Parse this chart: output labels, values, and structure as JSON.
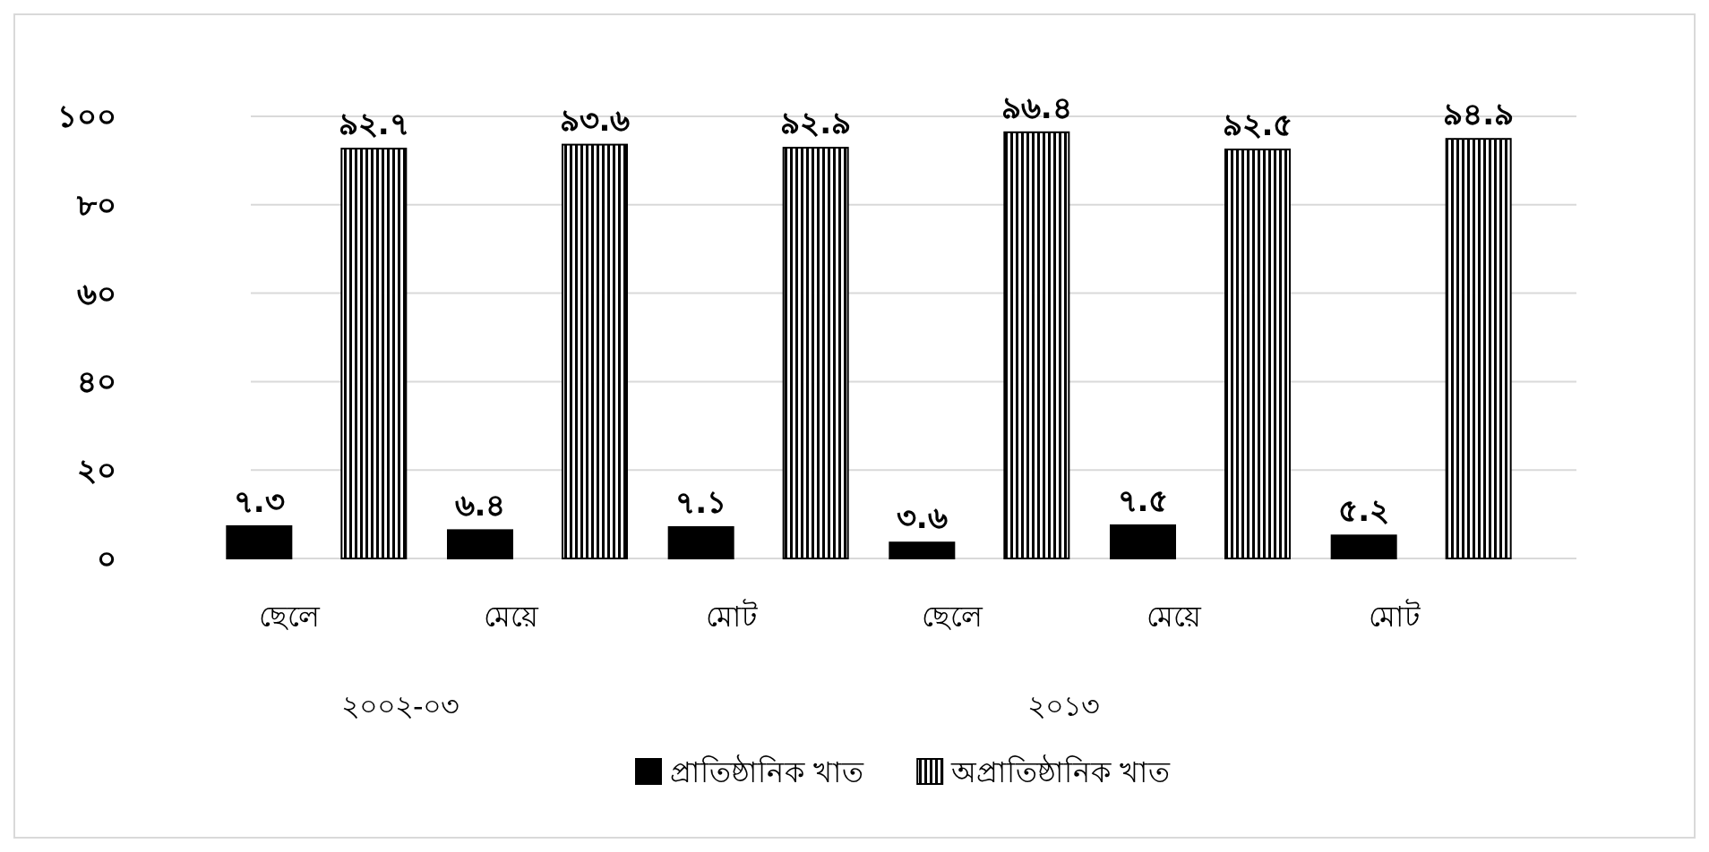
{
  "chart_data": {
    "type": "bar",
    "categories": [
      "ছেলে",
      "মেয়ে",
      "মোট",
      "ছেলে",
      "মেয়ে",
      "মোট"
    ],
    "series": [
      {
        "name": "প্রাতিষ্ঠানিক খাত",
        "color": "#000000",
        "values": [
          7.3,
          6.4,
          7.1,
          3.6,
          7.5,
          5.2
        ],
        "value_labels": [
          "৭.৩",
          "৬.৪",
          "৭.১",
          "৩.৬",
          "৭.৫",
          "৫.২"
        ]
      },
      {
        "name": "অপ্রাতিষ্ঠানিক খাত",
        "color": "#000000",
        "values": [
          92.7,
          93.6,
          92.9,
          96.4,
          92.5,
          94.9
        ],
        "value_labels": [
          "৯২.৭",
          "৯৩.৬",
          "৯২.৯",
          "৯৬.৪",
          "৯২.৫",
          "৯৪.৯"
        ]
      }
    ],
    "annotations": [
      "২০০২-০৩",
      "২০১৩"
    ],
    "ylim": [
      0,
      100
    ],
    "yticks": [
      {
        "value": 0,
        "label": "০"
      },
      {
        "value": 20,
        "label": "২০"
      },
      {
        "value": 40,
        "label": "৪০"
      },
      {
        "value": 60,
        "label": "৬০"
      },
      {
        "value": 80,
        "label": "৮০"
      },
      {
        "value": 100,
        "label": "১০০"
      }
    ],
    "grid": "y",
    "legend": "bottom"
  }
}
